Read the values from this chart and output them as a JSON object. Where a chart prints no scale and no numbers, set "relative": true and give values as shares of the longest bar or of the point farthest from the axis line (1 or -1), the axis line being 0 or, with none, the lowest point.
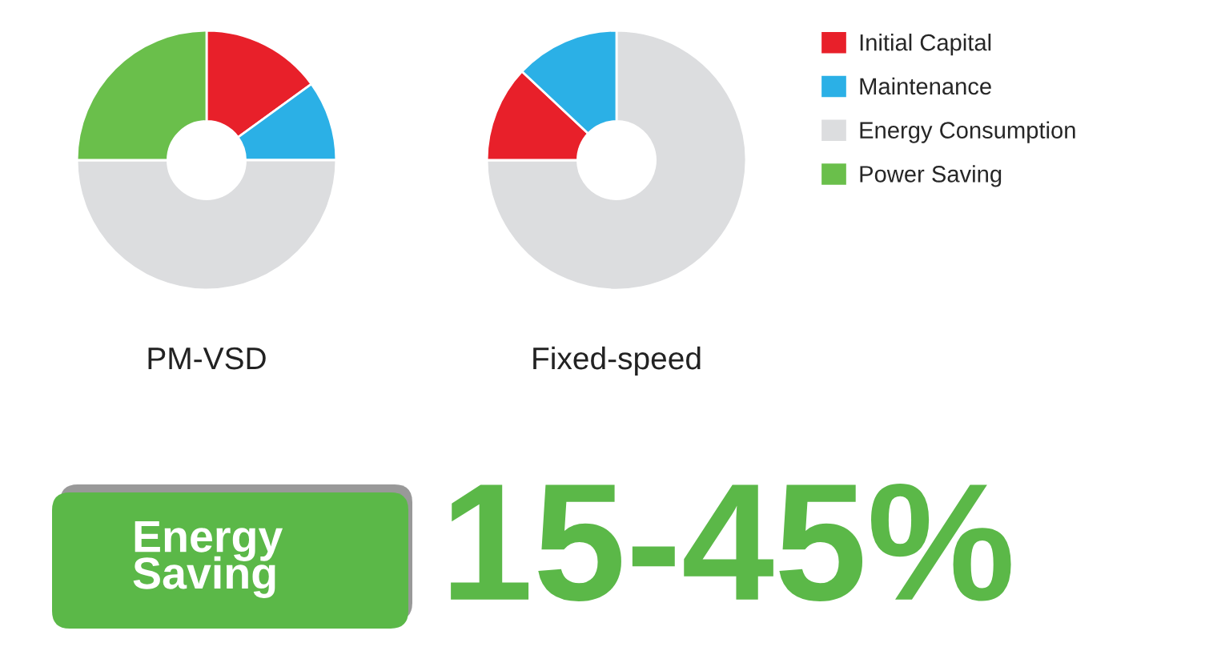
{
  "chart_data": [
    {
      "type": "donut",
      "title": "PM-VSD",
      "relative": true,
      "legend": "right",
      "categories": [
        "Initial Capital",
        "Maintenance",
        "Energy Consumption",
        "Power Saving"
      ],
      "values": [
        15,
        10,
        50,
        25
      ],
      "colors": [
        "#e8202a",
        "#2bb0e6",
        "#dcdddf",
        "#6abf4b"
      ]
    },
    {
      "type": "donut",
      "title": "Fixed-speed",
      "relative": true,
      "categories": [
        null,
        null,
        null
      ],
      "values": [
        75,
        12,
        13
      ],
      "colors": [
        "#dcdddf",
        "#e8202a",
        "#2bb0e6"
      ]
    },
    {
      "type": "other",
      "annotations": [
        "Energy\nSaving",
        "15-45%"
      ]
    }
  ]
}
